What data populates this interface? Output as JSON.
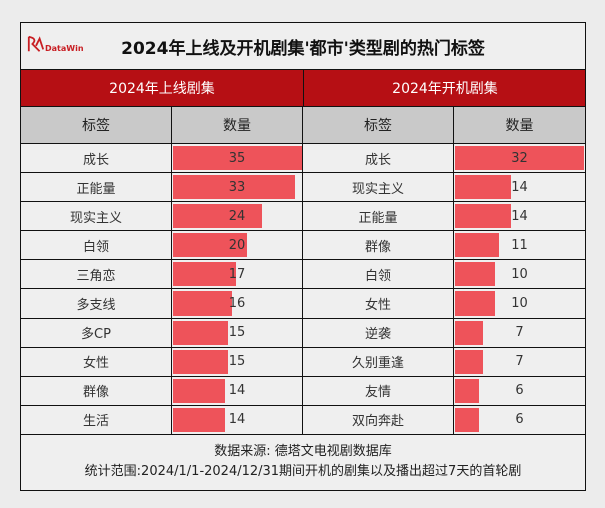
{
  "logo": {
    "text": "德塔文",
    "brand": "DataWin"
  },
  "chart_data": {
    "type": "table",
    "title": "2024年上线及开机剧集'都市'类型剧的热门标签",
    "groups": [
      {
        "name": "2024年上线剧集",
        "headers": [
          "标签",
          "数量"
        ],
        "rows": [
          {
            "tag": "成长",
            "value": 35
          },
          {
            "tag": "正能量",
            "value": 33
          },
          {
            "tag": "现实主义",
            "value": 24
          },
          {
            "tag": "白领",
            "value": 20
          },
          {
            "tag": "三角恋",
            "value": 17
          },
          {
            "tag": "多支线",
            "value": 16
          },
          {
            "tag": "多CP",
            "value": 15
          },
          {
            "tag": "女性",
            "value": 15
          },
          {
            "tag": "群像",
            "value": 14
          },
          {
            "tag": "生活",
            "value": 14
          }
        ]
      },
      {
        "name": "2024年开机剧集",
        "headers": [
          "标签",
          "数量"
        ],
        "rows": [
          {
            "tag": "成长",
            "value": 32
          },
          {
            "tag": "现实主义",
            "value": 14
          },
          {
            "tag": "正能量",
            "value": 14
          },
          {
            "tag": "群像",
            "value": 11
          },
          {
            "tag": "白领",
            "value": 10
          },
          {
            "tag": "女性",
            "value": 10
          },
          {
            "tag": "逆袭",
            "value": 7
          },
          {
            "tag": "久别重逢",
            "value": 7
          },
          {
            "tag": "友情",
            "value": 6
          },
          {
            "tag": "双向奔赴",
            "value": 6
          }
        ]
      }
    ],
    "bar_color": "#ee535a",
    "header_color": "#b60f14"
  },
  "footer": {
    "source": "数据来源: 德塔文电视剧数据库",
    "scope": "统计范围:2024/1/1-2024/12/31期间开机的剧集以及播出超过7天的首轮剧"
  }
}
